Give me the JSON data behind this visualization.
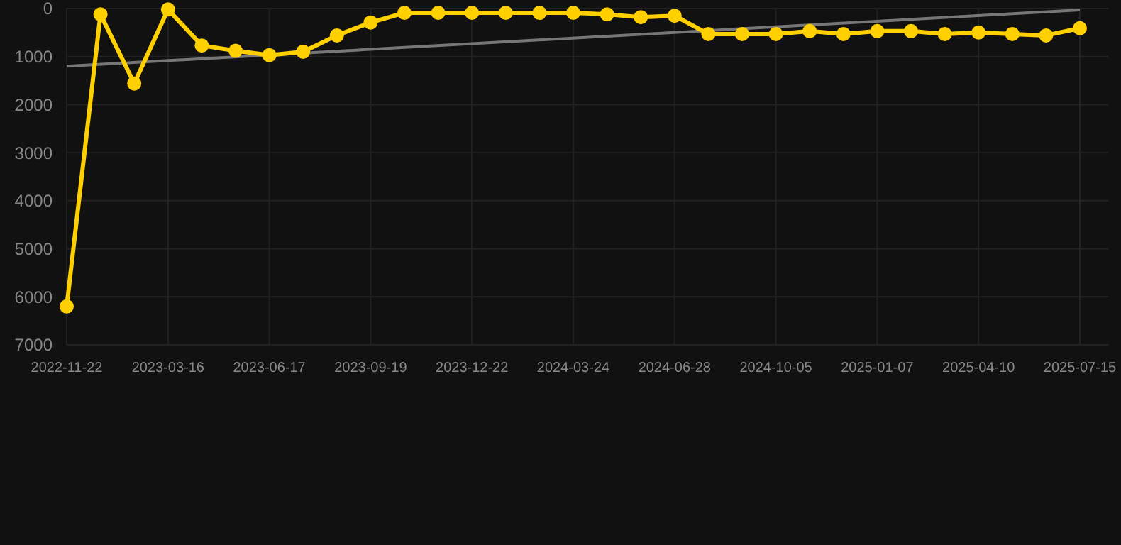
{
  "chart_data": {
    "type": "line",
    "categories": [
      "2022-11-22",
      null,
      null,
      "2023-03-16",
      null,
      null,
      "2023-06-17",
      null,
      null,
      "2023-09-19",
      null,
      null,
      "2023-12-22",
      null,
      null,
      "2024-03-24",
      null,
      null,
      "2024-06-28",
      null,
      null,
      "2024-10-05",
      null,
      null,
      "2025-01-07",
      null,
      null,
      "2025-04-10",
      null,
      null,
      "2025-07-15"
    ],
    "series": [
      {
        "color": "#ffd000",
        "values": [
          6200,
          120,
          1560,
          20,
          770,
          880,
          970,
          900,
          560,
          290,
          90,
          90,
          90,
          90,
          90,
          90,
          120,
          180,
          150,
          530,
          530,
          530,
          470,
          530,
          470,
          470,
          530,
          500,
          530,
          560,
          410
        ]
      },
      {
        "type": "line",
        "color": "#777777",
        "values": [
          1200,
          null,
          null,
          null,
          null,
          null,
          null,
          null,
          null,
          null,
          null,
          null,
          null,
          null,
          null,
          null,
          null,
          null,
          null,
          null,
          null,
          null,
          null,
          null,
          null,
          null,
          null,
          null,
          null,
          null,
          30
        ],
        "marker": "none"
      }
    ],
    "ylim": [
      7000,
      0
    ],
    "yticks": [
      0,
      1000,
      2000,
      3000,
      4000,
      5000,
      6000,
      7000
    ],
    "grid": true,
    "marker": "circle",
    "line_style": "solid"
  }
}
